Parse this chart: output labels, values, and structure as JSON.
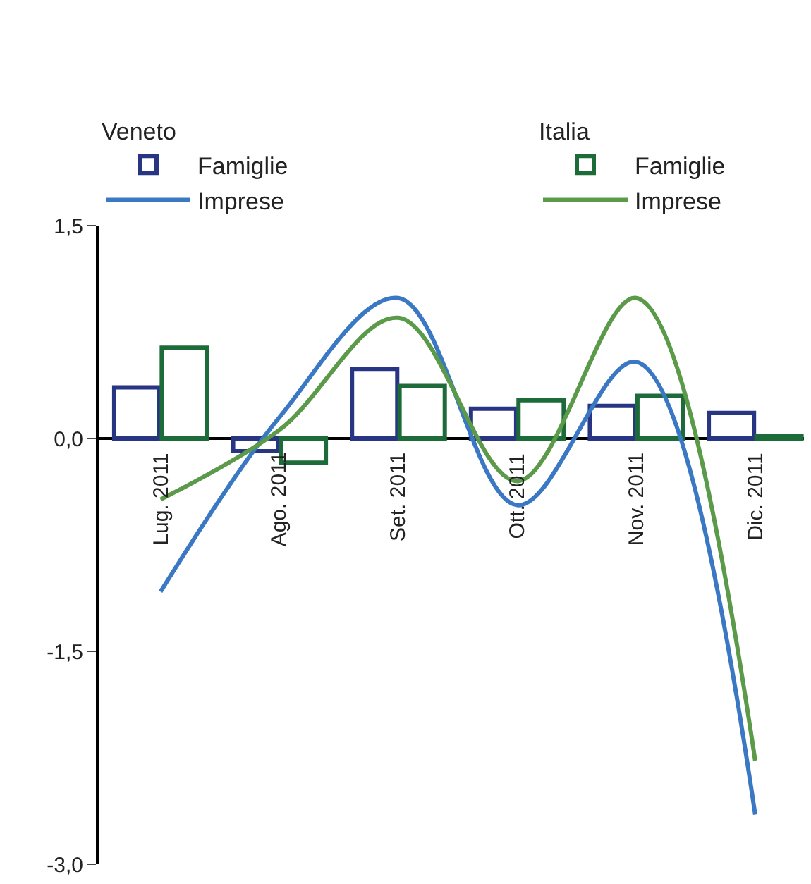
{
  "chart_data": {
    "type": "bar",
    "categories": [
      "Lug. 2011",
      "Ago. 2011",
      "Set. 2011",
      "Ott. 2011",
      "Nov. 2011",
      "Dic. 2011"
    ],
    "legend_title": [
      "Veneto",
      "Italia"
    ],
    "series": [
      {
        "name": "Famiglie",
        "color": "#283583",
        "values": [
          0.36,
          -0.09,
          0.49,
          0.21,
          0.23,
          0.18
        ]
      },
      {
        "name": "Imprese",
        "type": "line",
        "color": "#3a78c4",
        "values": [
          -1.08,
          0.15,
          0.99,
          -0.47,
          0.54,
          -2.65
        ]
      },
      {
        "name": "Famiglie",
        "color": "#1e6b3a",
        "values": [
          0.64,
          -0.17,
          0.37,
          0.27,
          0.3,
          0.02
        ]
      },
      {
        "name": "Imprese",
        "type": "line",
        "color": "#5a9a48",
        "values": [
          -0.43,
          0.06,
          0.85,
          -0.3,
          0.99,
          -2.27
        ]
      }
    ],
    "ylim": [
      -3.0,
      1.5
    ],
    "yticks": [
      {
        "value": 1.5,
        "label": "1,5"
      },
      {
        "value": 0.0,
        "label": "0,0"
      },
      {
        "value": -1.5,
        "label": "-1,5"
      },
      {
        "value": -3.0,
        "label": "-3,0"
      }
    ],
    "legend": "top",
    "marker": "none",
    "line_style": "solid"
  }
}
